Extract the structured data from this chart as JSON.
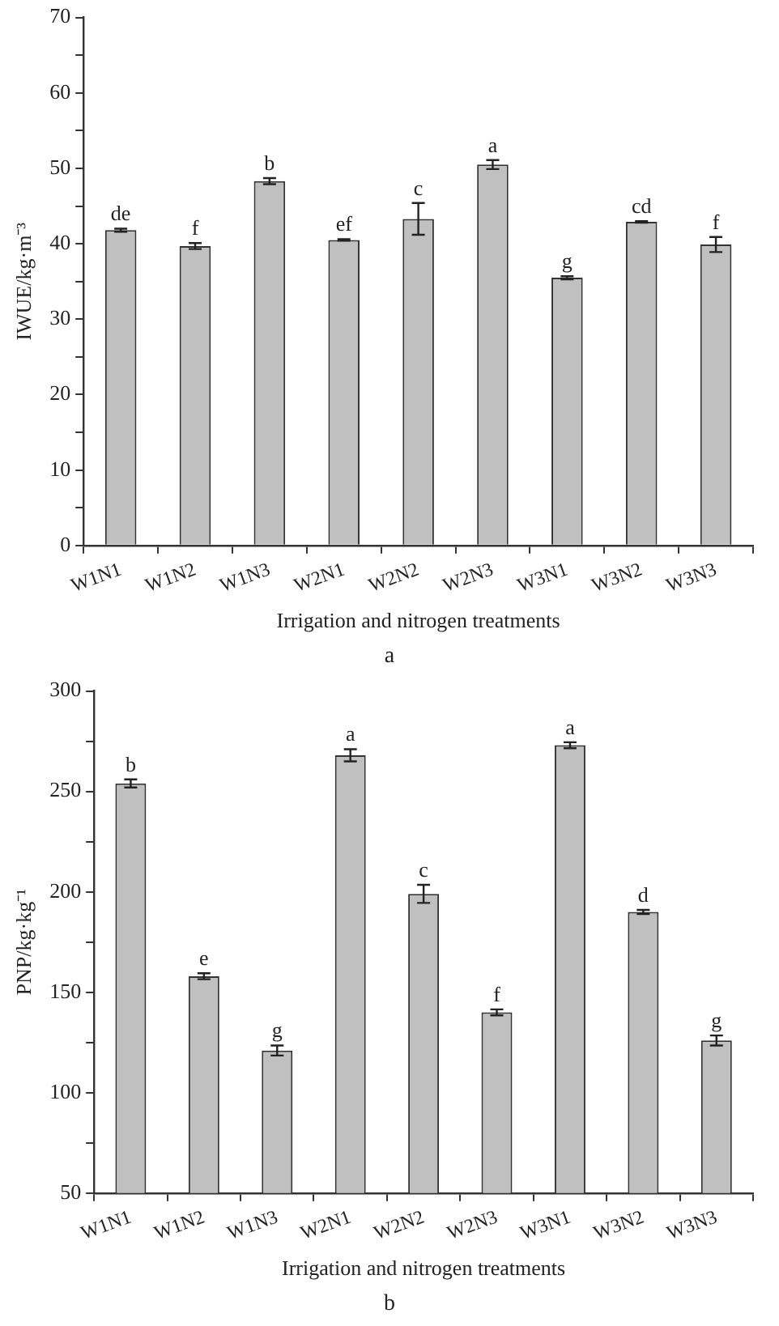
{
  "chart_data": [
    {
      "type": "bar",
      "title": "a",
      "xlabel": "Irrigation and nitrogen treatments",
      "ylabel": "IWUE/kg·m⁻³",
      "categories": [
        "W1N1",
        "W1N2",
        "W1N3",
        "W2N1",
        "W2N2",
        "W2N3",
        "W3N1",
        "W3N2",
        "W3N3"
      ],
      "values": [
        41.8,
        39.7,
        48.3,
        40.5,
        43.3,
        50.5,
        35.5,
        42.9,
        39.9
      ],
      "errors": [
        0.2,
        0.4,
        0.4,
        0.1,
        2.1,
        0.6,
        0.2,
        0.1,
        1.0
      ],
      "color": "#c0c0c0",
      "ylim": [
        0,
        70
      ],
      "yticks": [
        0,
        {
          "value": 5,
          "label": null
        },
        10,
        {
          "value": 15,
          "label": null
        },
        20,
        {
          "value": 25,
          "label": null
        },
        30,
        {
          "value": 35,
          "label": null
        },
        40,
        {
          "value": 45,
          "label": null
        },
        50,
        {
          "value": 55,
          "label": null
        },
        60,
        {
          "value": 65,
          "label": null
        },
        70
      ],
      "grid": false,
      "annotations": [
        {
          "text": "de",
          "x": "W1N1",
          "y": 42
        },
        {
          "text": "f",
          "x": "W1N2",
          "y": 40.1
        },
        {
          "text": "b",
          "x": "W1N3",
          "y": 48.7
        },
        {
          "text": "ef",
          "x": "W2N1",
          "y": 40.6
        },
        {
          "text": "c",
          "x": "W2N2",
          "y": 45.4
        },
        {
          "text": "a",
          "x": "W2N3",
          "y": 51.1
        },
        {
          "text": "g",
          "x": "W3N1",
          "y": 35.7
        },
        {
          "text": "cd",
          "x": "W3N2",
          "y": 43
        },
        {
          "text": "f",
          "x": "W3N3",
          "y": 40.9
        }
      ]
    },
    {
      "type": "bar",
      "title": "b",
      "xlabel": "Irrigation and nitrogen treatments",
      "ylabel": "PNP/kg·kg⁻¹",
      "categories": [
        "W1N1",
        "W1N2",
        "W1N3",
        "W2N1",
        "W2N2",
        "W2N3",
        "W3N1",
        "W3N2",
        "W3N3"
      ],
      "values": [
        254,
        158,
        121,
        268,
        199,
        140,
        273,
        190,
        126
      ],
      "errors": [
        2,
        1.5,
        2.5,
        3,
        4.5,
        1.5,
        1.5,
        1,
        2.5
      ],
      "color": "#c0c0c0",
      "ylim": [
        50,
        300
      ],
      "yticks": [
        50,
        {
          "value": 75,
          "label": null
        },
        100,
        {
          "value": 125,
          "label": null
        },
        150,
        {
          "value": 175,
          "label": null
        },
        200,
        {
          "value": 225,
          "label": null
        },
        250,
        {
          "value": 275,
          "label": null
        },
        300
      ],
      "grid": false,
      "annotations": [
        {
          "text": "b",
          "x": "W1N1",
          "y": 256
        },
        {
          "text": "e",
          "x": "W1N2",
          "y": 159.5
        },
        {
          "text": "g",
          "x": "W1N3",
          "y": 123.5
        },
        {
          "text": "a",
          "x": "W2N1",
          "y": 271
        },
        {
          "text": "c",
          "x": "W2N2",
          "y": 203.5
        },
        {
          "text": "f",
          "x": "W2N3",
          "y": 141.5
        },
        {
          "text": "a",
          "x": "W3N1",
          "y": 274.5
        },
        {
          "text": "d",
          "x": "W3N2",
          "y": 191
        },
        {
          "text": "g",
          "x": "W3N3",
          "y": 128.5
        }
      ]
    }
  ]
}
